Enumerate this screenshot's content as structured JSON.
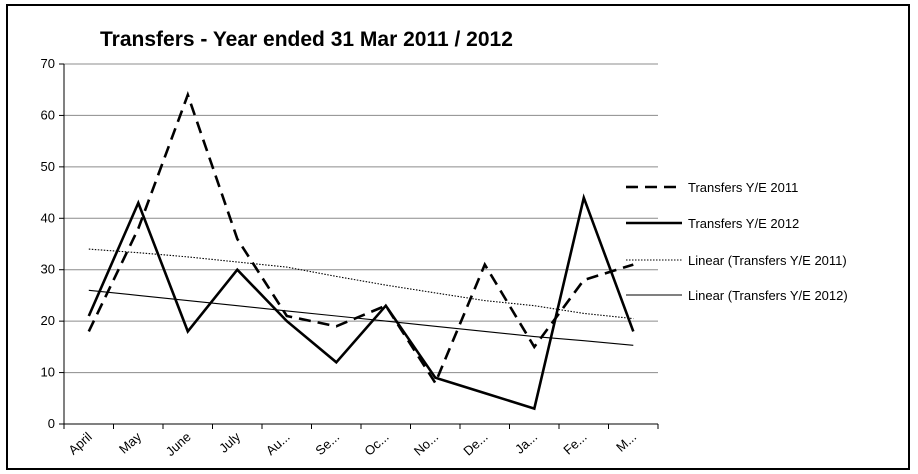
{
  "chart_data": {
    "type": "line",
    "title": "Transfers  - Year ended 31 Mar 2011 / 2012",
    "xlabel": "",
    "ylabel": "",
    "categories": [
      "April",
      "May",
      "June",
      "July",
      "Au...",
      "Se...",
      "Oc...",
      "No...",
      "De...",
      "Ja...",
      "Fe...",
      "M..."
    ],
    "ylim": [
      0,
      70
    ],
    "yticks": [
      0,
      10,
      20,
      30,
      40,
      50,
      60,
      70
    ],
    "grid": true,
    "legend_position": "right",
    "series": [
      {
        "name": "Transfers Y/E 2011",
        "style": "dashed",
        "color": "#000000",
        "values": [
          18,
          38,
          64,
          36,
          21,
          19,
          23,
          8,
          31,
          15,
          28,
          31
        ]
      },
      {
        "name": "Transfers Y/E 2012",
        "style": "solid",
        "color": "#000000",
        "values": [
          21,
          43,
          18,
          30,
          20,
          12,
          23,
          9,
          6,
          3,
          44,
          18
        ]
      },
      {
        "name": "Linear (Transfers Y/E 2011)",
        "style": "dotted-trend",
        "color": "#000000",
        "values": [
          34,
          33.3,
          32.5,
          31.5,
          30.5,
          28.7,
          27,
          25.5,
          24,
          23,
          21.5,
          20.5
        ]
      },
      {
        "name": "Linear (Transfers Y/E 2012)",
        "style": "thin-trend",
        "color": "#000000",
        "values": [
          26,
          25,
          24,
          23,
          22,
          21,
          20,
          19,
          18,
          17,
          16.2,
          15.3
        ]
      }
    ]
  }
}
